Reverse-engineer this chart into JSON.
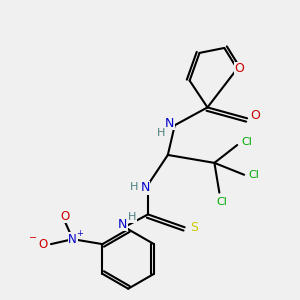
{
  "background_color": "#f0f0f0",
  "atom_colors": {
    "C": "#000000",
    "H": "#4a8080",
    "N": "#0000cc",
    "O": "#cc0000",
    "S": "#cccc00",
    "Cl": "#00aa00"
  },
  "figsize": [
    3.0,
    3.0
  ],
  "dpi": 100
}
